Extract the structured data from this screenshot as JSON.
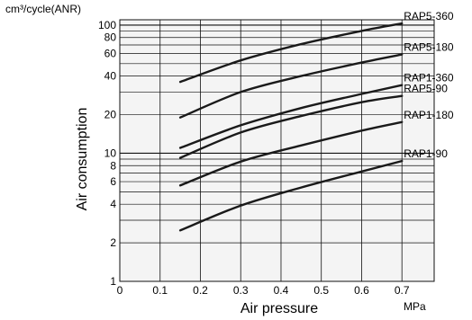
{
  "chart_data": {
    "type": "line",
    "y_scale": "log",
    "grid": true,
    "y_unit": "cm³/cycle(ANR)",
    "ylabel": "Air consumption",
    "xlabel": "Air pressure",
    "x_unit": "MPa",
    "xlim": [
      0,
      0.78
    ],
    "ylim": [
      1,
      110
    ],
    "x_ticks": [
      0,
      0.1,
      0.2,
      0.3,
      0.4,
      0.5,
      0.6,
      0.7
    ],
    "x_tick_labels": [
      "0",
      "0.1",
      "0.2",
      "0.3",
      "0.4",
      "0.5",
      "0.6",
      "0.7"
    ],
    "y_ticks": [
      1,
      2,
      4,
      6,
      8,
      10,
      20,
      40,
      60,
      80,
      100
    ],
    "y_tick_labels": [
      "1",
      "2",
      "4",
      "6",
      "8",
      "10",
      "20",
      "40",
      "60",
      "80",
      "100"
    ],
    "series": [
      {
        "name": "RAP5-360",
        "x": [
          0.15,
          0.3,
          0.45,
          0.6,
          0.7
        ],
        "y": [
          36,
          53,
          71,
          90,
          103
        ]
      },
      {
        "name": "RAP5-180",
        "x": [
          0.15,
          0.3,
          0.45,
          0.6,
          0.7
        ],
        "y": [
          19,
          30,
          40,
          51,
          59
        ]
      },
      {
        "name": "RAP1-360",
        "x": [
          0.15,
          0.3,
          0.45,
          0.6,
          0.7
        ],
        "y": [
          11,
          16.5,
          22.5,
          29,
          34
        ]
      },
      {
        "name": "RAP5-90",
        "x": [
          0.15,
          0.3,
          0.45,
          0.6,
          0.7
        ],
        "y": [
          9.2,
          14.5,
          19.5,
          25,
          28
        ]
      },
      {
        "name": "RAP1-180",
        "x": [
          0.15,
          0.3,
          0.45,
          0.6,
          0.7
        ],
        "y": [
          5.6,
          8.6,
          11.5,
          15,
          17.5
        ]
      },
      {
        "name": "RAP1-90",
        "x": [
          0.15,
          0.3,
          0.45,
          0.6,
          0.7
        ],
        "y": [
          2.5,
          3.9,
          5.4,
          7.2,
          8.7
        ]
      }
    ],
    "line_color": "#1a1a1a",
    "grid_color": "#111111",
    "plot_background": "#f4f4f4"
  }
}
